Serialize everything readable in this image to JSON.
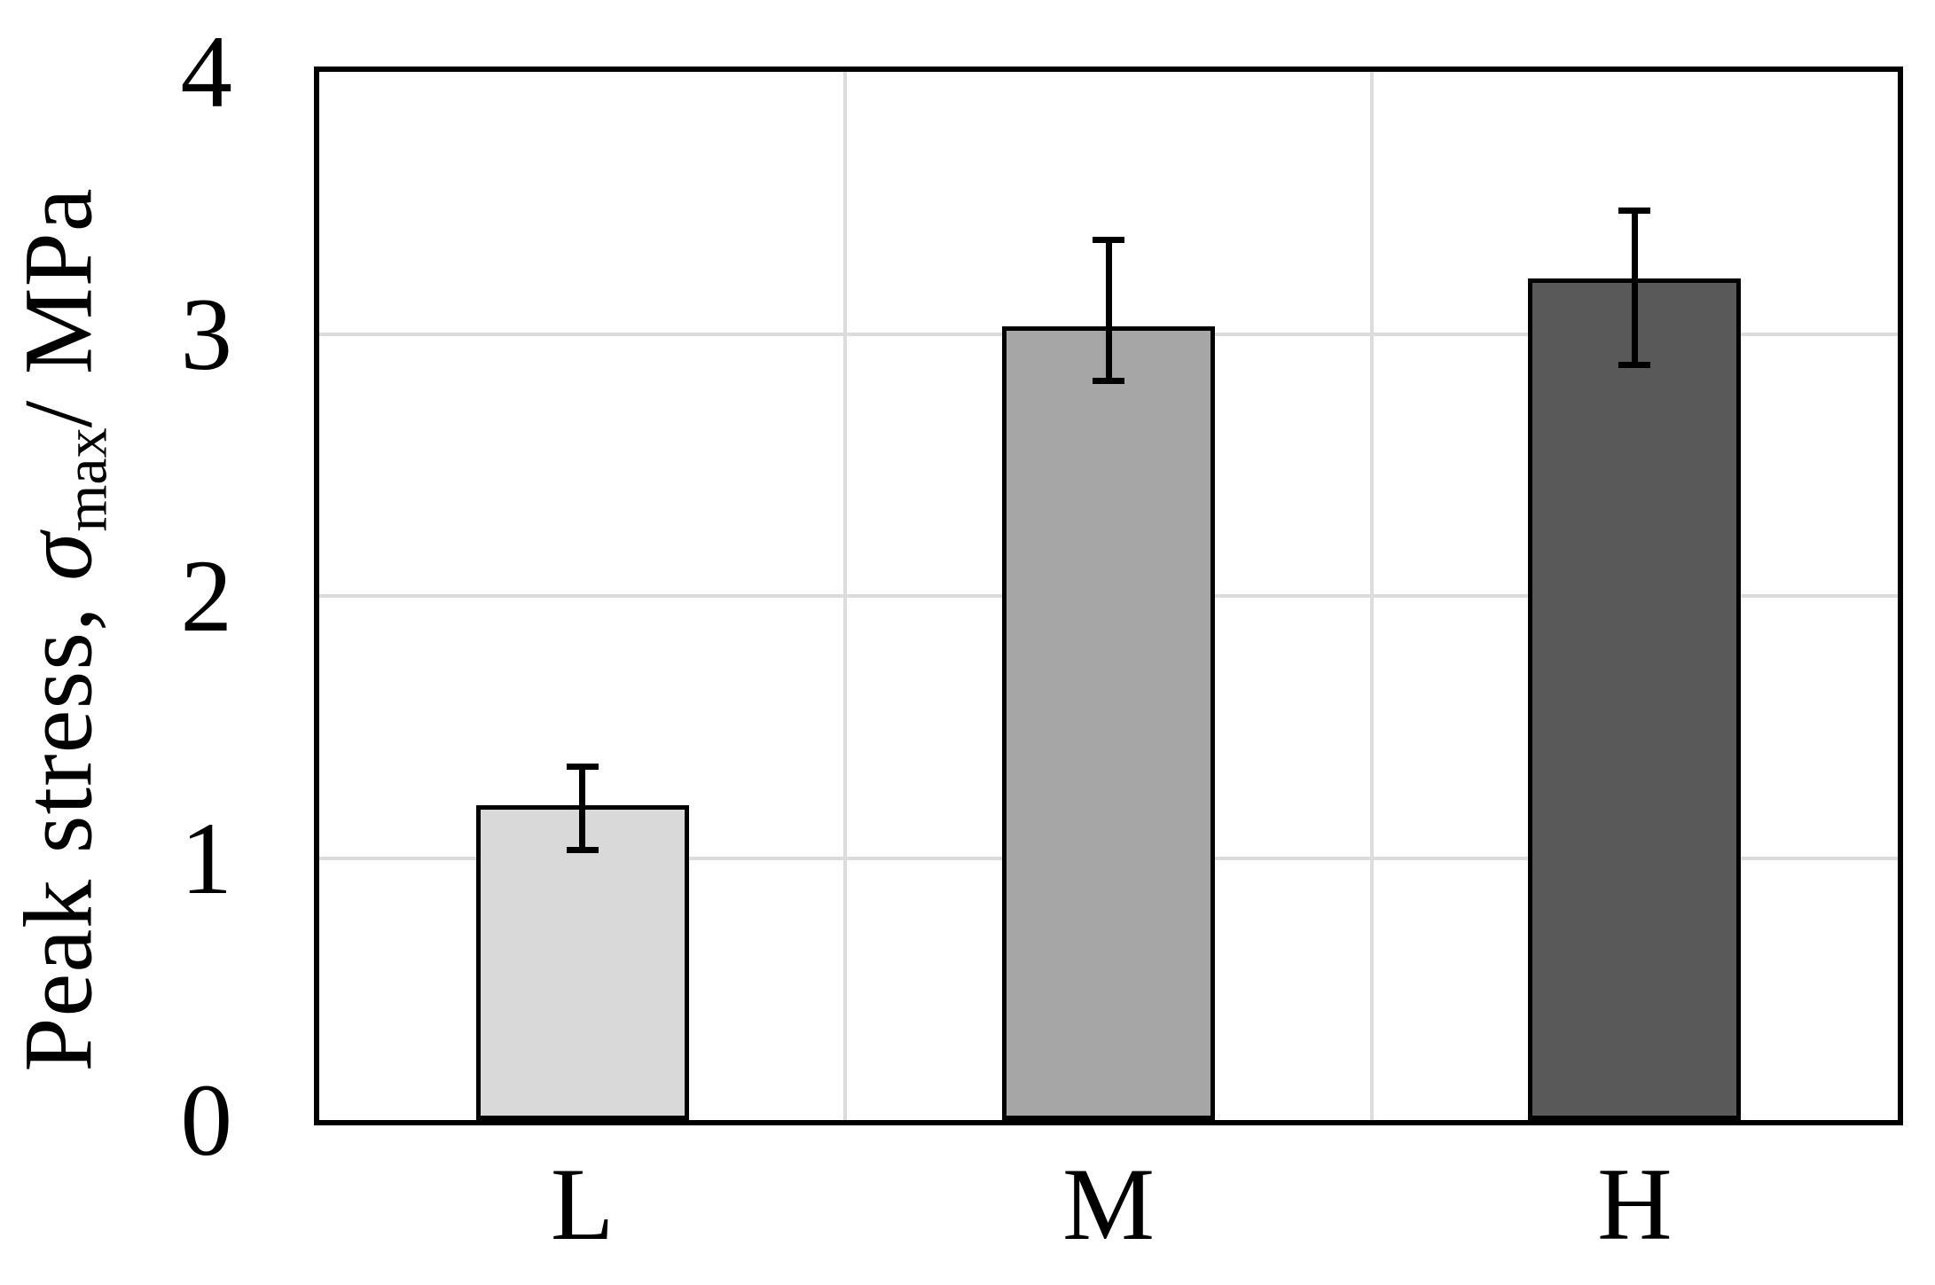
{
  "figure": {
    "background": "#ffffff",
    "plot_border_color": "#000000"
  },
  "chart_data": {
    "type": "bar",
    "title": "",
    "categories": [
      "L",
      "M",
      "H"
    ],
    "values": [
      1.2,
      3.03,
      3.21
    ],
    "error_low": [
      1.03,
      2.82,
      2.88
    ],
    "error_high": [
      1.35,
      3.36,
      3.47
    ],
    "bar_colors": [
      "#d9d9d9",
      "#a6a6a6",
      "#595959"
    ],
    "bar_border_color": "#000000",
    "xlabel": "",
    "ylabel": {
      "prefix": "Peak stress, ",
      "symbol": "σ",
      "subscript": "max",
      "suffix": "/ MPa"
    },
    "yticks": [
      0,
      1,
      2,
      3,
      4
    ],
    "ylim": [
      0,
      4
    ],
    "grid": "horizontal gridlines at 1,2,3 and vertical gridlines at category boundaries",
    "grid_color": "#dcdcdc",
    "axis_color": "#000000",
    "legend_position": "none"
  }
}
